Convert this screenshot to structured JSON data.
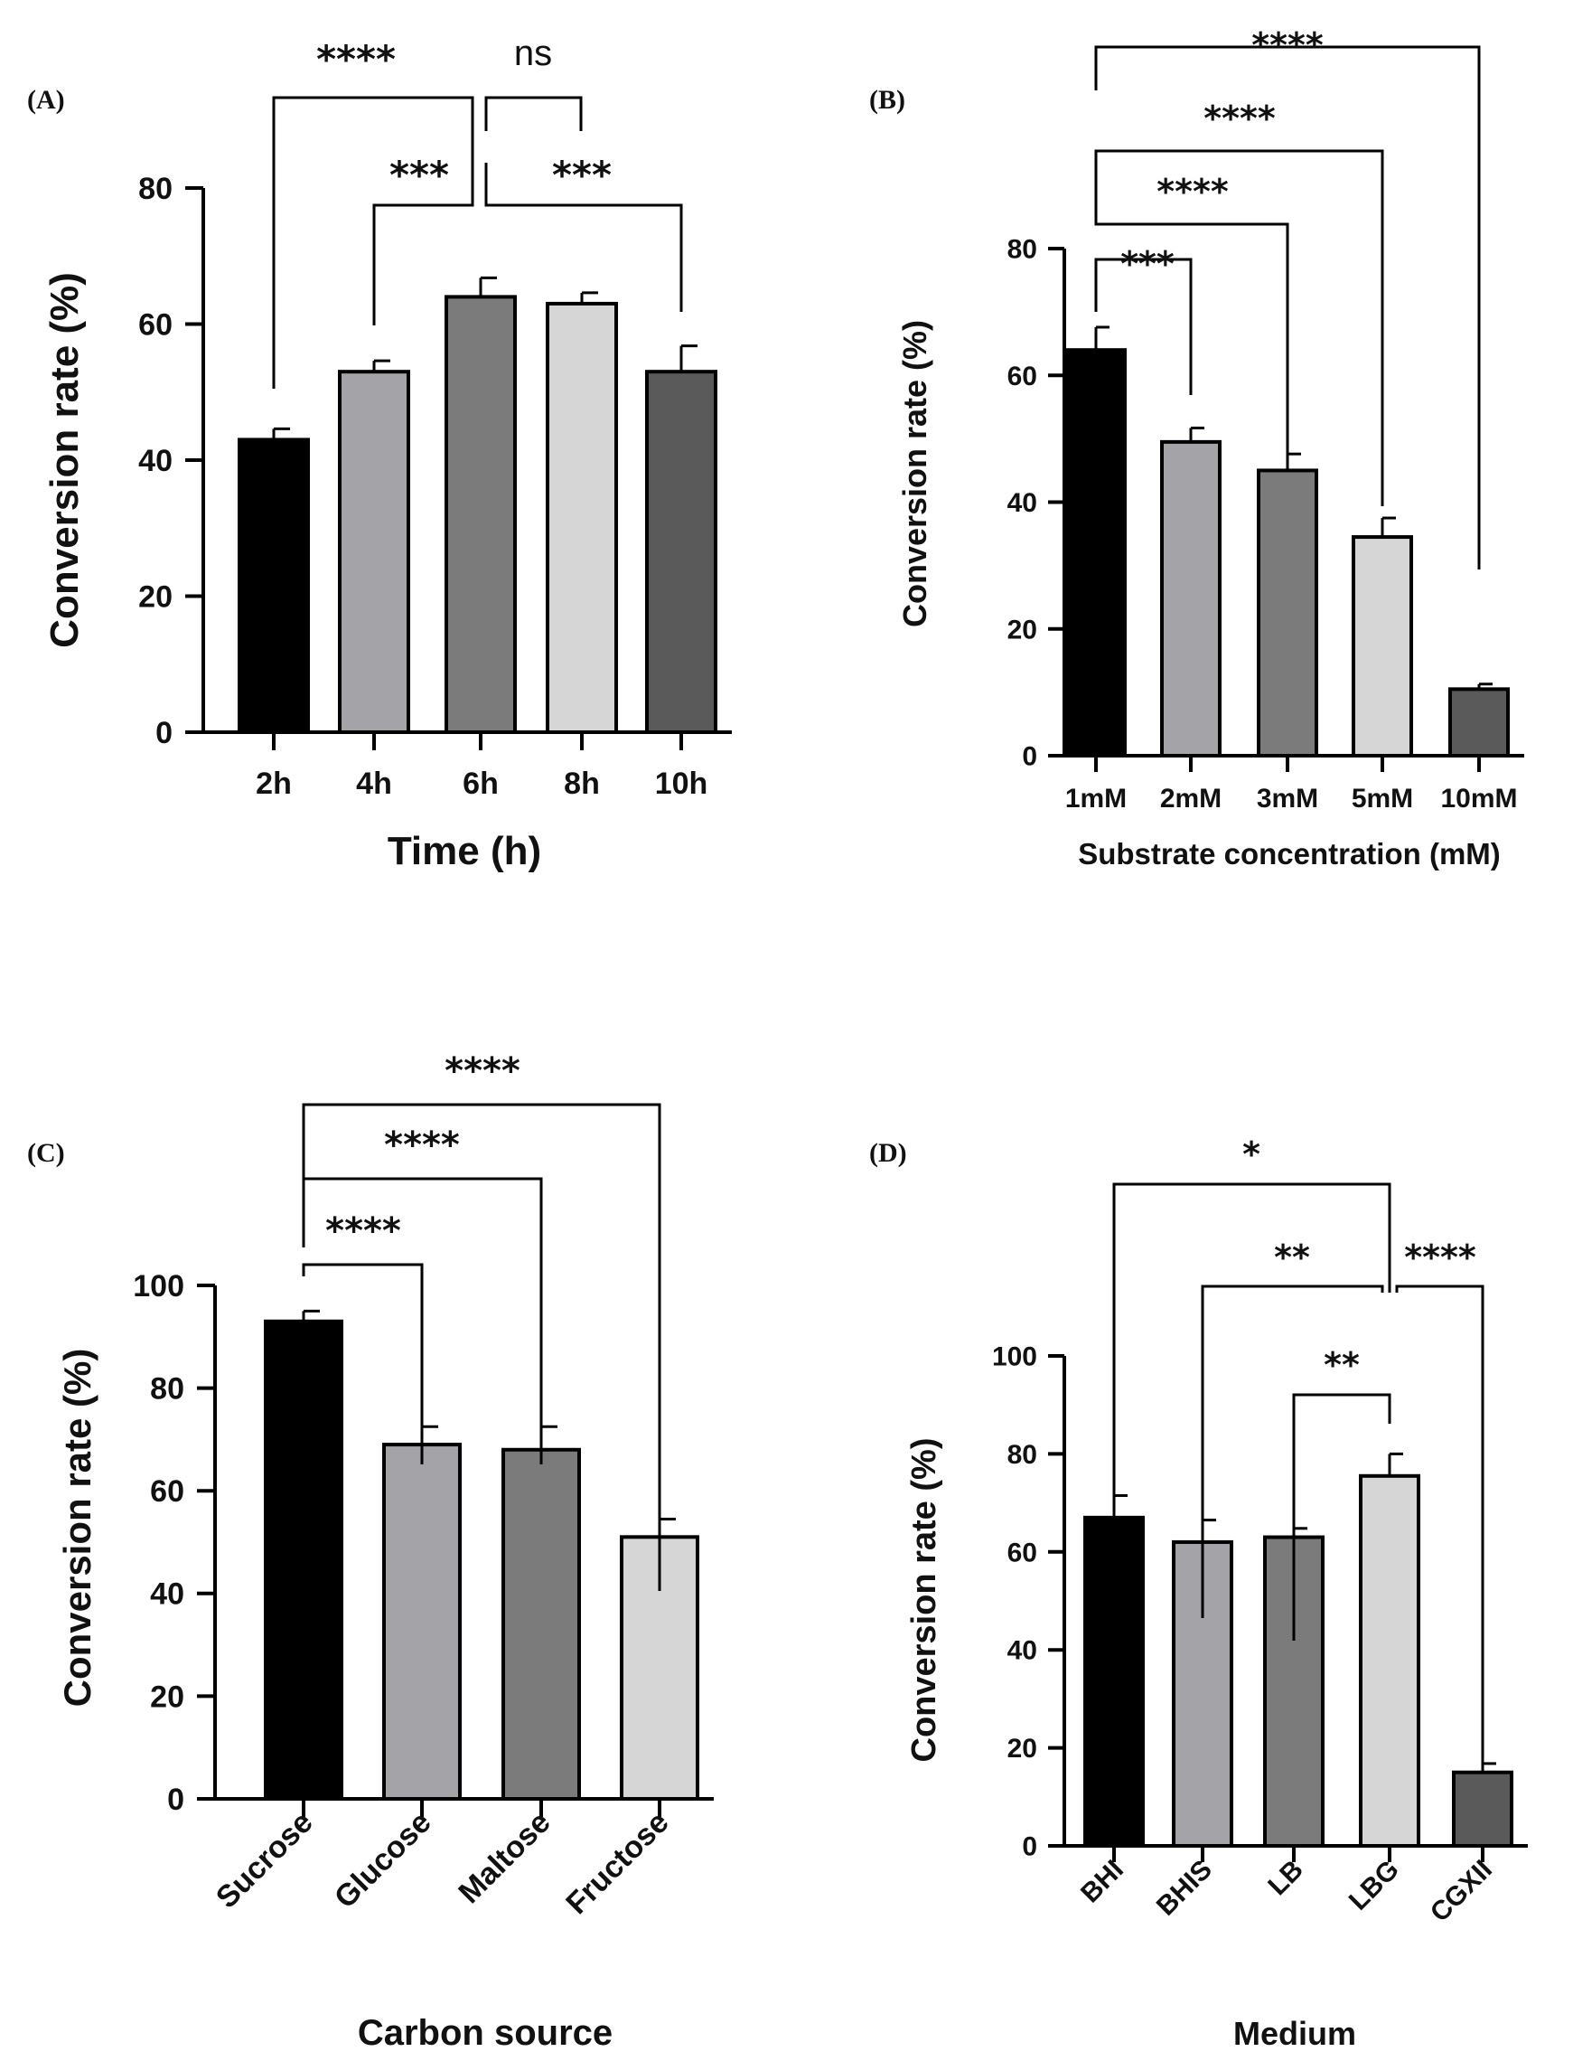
{
  "chart_data": [
    {
      "type": "bar",
      "panel": "(A)",
      "xlabel": "Time (h)",
      "ylabel": "Conversion rate (%)",
      "ylim": [
        0,
        80
      ],
      "yticks": [
        0,
        20,
        40,
        60,
        80
      ],
      "categories": [
        "2h",
        "4h",
        "6h",
        "8h",
        "10h"
      ],
      "values": [
        43,
        53,
        64,
        63,
        53
      ],
      "errors": [
        1.6,
        1.6,
        2.8,
        1.6,
        3.8
      ],
      "colors": [
        "#000000",
        "#a3a3a8",
        "#7b7b7b",
        "#d6d6d6",
        "#5a5a5a"
      ],
      "significance": [
        {
          "from": 0,
          "to": 2,
          "label": "****"
        },
        {
          "from": 2,
          "to": 3,
          "label": "ns"
        },
        {
          "from": 1,
          "to": 2,
          "label": "***"
        },
        {
          "from": 2,
          "to": 4,
          "label": "***"
        }
      ]
    },
    {
      "type": "bar",
      "panel": "(B)",
      "xlabel": "Substrate concentration (mM)",
      "ylabel": "Conversion rate (%)",
      "ylim": [
        0,
        80
      ],
      "yticks": [
        0,
        20,
        40,
        60,
        80
      ],
      "categories": [
        "1mM",
        "2mM",
        "3mM",
        "5mM",
        "10mM"
      ],
      "values": [
        64,
        49.5,
        45,
        34.5,
        10.5
      ],
      "errors": [
        3.6,
        2.2,
        2.6,
        3.0,
        0.8
      ],
      "colors": [
        "#000000",
        "#a3a3a8",
        "#7b7b7b",
        "#d6d6d6",
        "#5a5a5a"
      ],
      "significance": [
        {
          "from": 0,
          "to": 4,
          "label": "****"
        },
        {
          "from": 0,
          "to": 3,
          "label": "****"
        },
        {
          "from": 0,
          "to": 2,
          "label": "****"
        },
        {
          "from": 0,
          "to": 1,
          "label": "***"
        }
      ]
    },
    {
      "type": "bar",
      "panel": "(C)",
      "xlabel": "Carbon source",
      "ylabel": "Conversion rate (%)",
      "ylim": [
        0,
        100
      ],
      "yticks": [
        0,
        20,
        40,
        60,
        80,
        100
      ],
      "categories": [
        "Sucrose",
        "Glucose",
        "Maltose",
        "Fructose"
      ],
      "values": [
        93,
        69,
        68,
        51
      ],
      "errors": [
        2.0,
        3.5,
        4.5,
        3.5
      ],
      "colors": [
        "#000000",
        "#a3a3a8",
        "#7b7b7b",
        "#d6d6d6"
      ],
      "significance": [
        {
          "from": 0,
          "to": 3,
          "label": "****"
        },
        {
          "from": 0,
          "to": 2,
          "label": "****"
        },
        {
          "from": 0,
          "to": 1,
          "label": "****"
        }
      ]
    },
    {
      "type": "bar",
      "panel": "(D)",
      "xlabel": "Medium",
      "ylabel": "Conversion rate (%)",
      "ylim": [
        0,
        100
      ],
      "yticks": [
        0,
        20,
        40,
        60,
        80,
        100
      ],
      "categories": [
        "BHI",
        "BHIS",
        "LB",
        "LBG",
        "CGXII"
      ],
      "values": [
        67,
        62,
        63,
        75.5,
        15
      ],
      "errors": [
        4.5,
        4.5,
        1.8,
        4.5,
        1.8
      ],
      "colors": [
        "#000000",
        "#a3a3a8",
        "#7b7b7b",
        "#d6d6d6",
        "#5a5a5a"
      ],
      "significance": [
        {
          "from": 0,
          "to": 3,
          "label": "*"
        },
        {
          "from": 1,
          "to": 3,
          "label": "**"
        },
        {
          "from": 3,
          "to": 4,
          "label": "****"
        },
        {
          "from": 2,
          "to": 3,
          "label": "**"
        }
      ]
    }
  ]
}
